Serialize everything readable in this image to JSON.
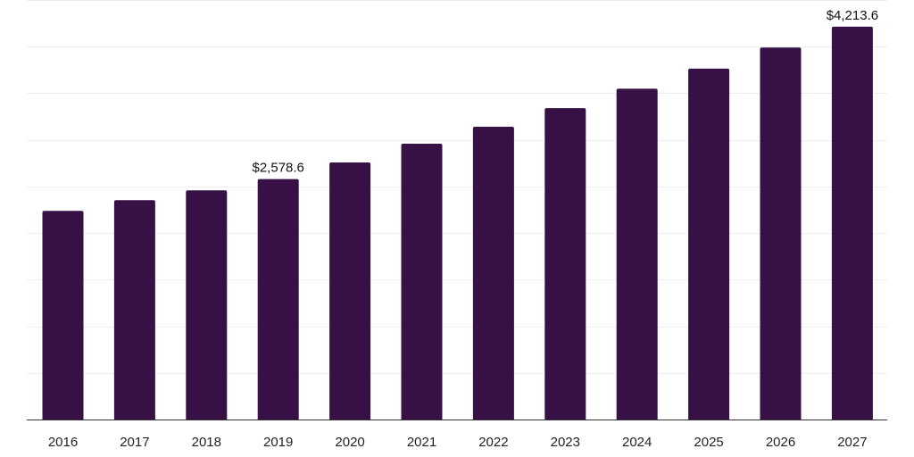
{
  "chart_data": {
    "type": "bar",
    "categories": [
      "2016",
      "2017",
      "2018",
      "2019",
      "2020",
      "2021",
      "2022",
      "2023",
      "2024",
      "2025",
      "2026",
      "2027"
    ],
    "values": [
      2238,
      2353,
      2458,
      2578.6,
      2758,
      2958,
      3140,
      3340,
      3548,
      3764,
      3990,
      4213.6
    ],
    "data_labels": [
      {
        "index": 3,
        "text": "$2,578.6"
      },
      {
        "index": 11,
        "text": "$4,213.6"
      }
    ],
    "ylim": [
      0,
      4500
    ],
    "gridlines": [
      500,
      1000,
      1500,
      2000,
      2500,
      3000,
      3500,
      4000,
      4500
    ],
    "grid": true,
    "legend": "none",
    "bar_color": "#371146",
    "gridline_color": "#eeeeee",
    "axis_color": "#333333"
  }
}
